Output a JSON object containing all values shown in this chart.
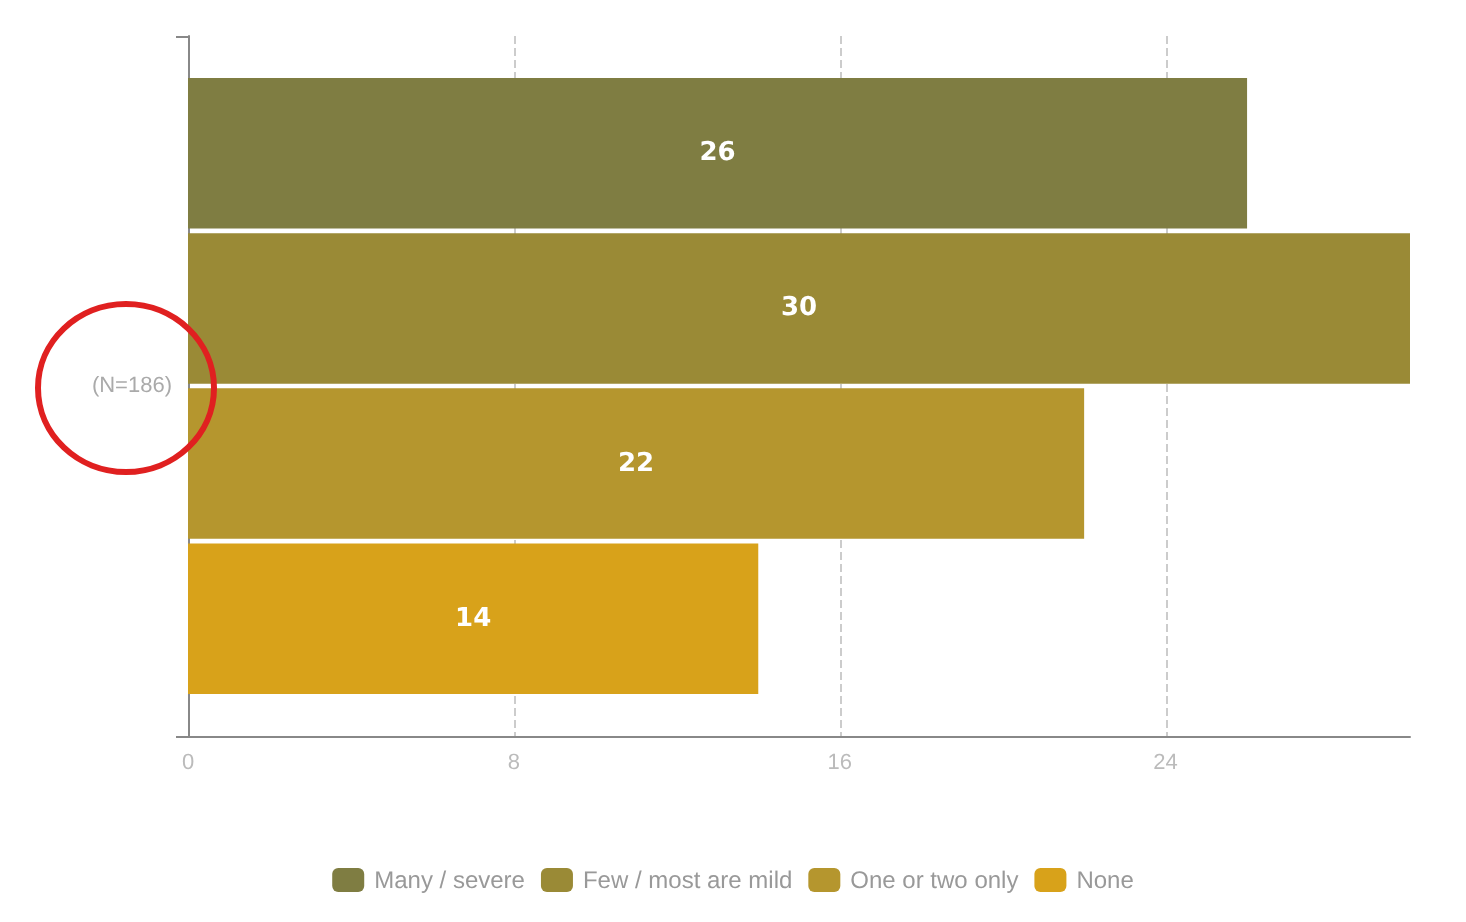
{
  "chart_data": {
    "type": "bar",
    "orientation": "horizontal",
    "categories": [
      "(N=186)"
    ],
    "series": [
      {
        "name": "Many / severe",
        "color": "#7f7d42",
        "values": [
          26
        ]
      },
      {
        "name": "Few / most are mild",
        "color": "#9a8a36",
        "values": [
          30
        ]
      },
      {
        "name": "One or two only",
        "color": "#b5962e",
        "values": [
          22
        ]
      },
      {
        "name": "None",
        "color": "#d8a21a",
        "values": [
          14
        ]
      }
    ],
    "xlim": [
      0,
      30
    ],
    "xticks": [
      0,
      8,
      16,
      24
    ],
    "grid": "x",
    "legend": "bottom",
    "data_labels": true
  }
}
